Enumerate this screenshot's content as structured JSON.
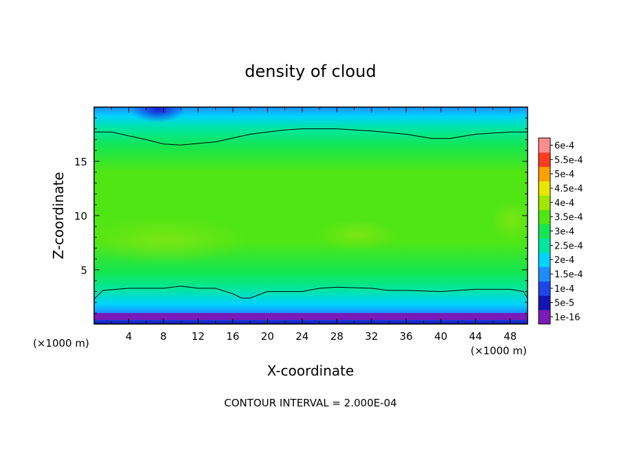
{
  "chart_data": {
    "type": "contour",
    "title": "density of cloud",
    "xlabel": "X-coordinate",
    "ylabel": "Z-coordinate",
    "x_unit": "(×1000 m)",
    "x_unit_right": "(×1000 m)",
    "footer": "CONTOUR INTERVAL = 2.000E-04",
    "xlim": [
      0,
      50
    ],
    "ylim": [
      0,
      20
    ],
    "x_ticks": [
      "4",
      "8",
      "12",
      "16",
      "20",
      "24",
      "28",
      "32",
      "36",
      "40",
      "44",
      "48"
    ],
    "x_tick_values": [
      4,
      8,
      12,
      16,
      20,
      24,
      28,
      32,
      36,
      40,
      44,
      48
    ],
    "y_ticks": [
      "5",
      "10",
      "15"
    ],
    "y_tick_values": [
      5,
      10,
      15
    ],
    "colorbar_labels": [
      "1e-16",
      "5e-5",
      "1e-4",
      "1.5e-4",
      "2e-4",
      "2.5e-4",
      "3e-4",
      "3.5e-4",
      "4e-4",
      "4.5e-4",
      "5e-4",
      "5.5e-4",
      "6e-4"
    ],
    "colorbar_values": [
      1e-16,
      5e-05,
      0.0001,
      0.00015,
      0.0002,
      0.00025,
      0.0003,
      0.00035,
      0.0004,
      0.00045,
      0.0005,
      0.00055,
      0.0006
    ],
    "colorbar_colors": [
      "#7a1ab8",
      "#1414b4",
      "#1e46e6",
      "#1e8cff",
      "#00d2ff",
      "#00e6a0",
      "#14e650",
      "#50e614",
      "#a0e600",
      "#e6e600",
      "#ffa000",
      "#ff3c1e",
      "#ff8c8c"
    ],
    "contour_lines": [
      {
        "level": 0.0002,
        "x": [
          0,
          1,
          4,
          8,
          10,
          12,
          14,
          16,
          17,
          18,
          20,
          24,
          26,
          28,
          32,
          34,
          36,
          40,
          44,
          48,
          49.5,
          50
        ],
        "y": [
          2.3,
          3.1,
          3.3,
          3.3,
          3.5,
          3.3,
          3.3,
          2.8,
          2.4,
          2.4,
          3.0,
          3.0,
          3.3,
          3.4,
          3.3,
          3.1,
          3.1,
          3.0,
          3.2,
          3.2,
          3.0,
          2.4
        ]
      },
      {
        "level": 0.0002,
        "x": [
          0,
          2,
          6,
          8,
          10,
          14,
          18,
          22,
          24,
          28,
          32,
          36,
          39,
          41,
          44,
          48,
          50
        ],
        "y": [
          17.7,
          17.7,
          17.0,
          16.6,
          16.5,
          16.8,
          17.5,
          17.9,
          18.0,
          18.0,
          17.8,
          17.5,
          17.1,
          17.1,
          17.5,
          17.7,
          17.7
        ]
      }
    ]
  }
}
